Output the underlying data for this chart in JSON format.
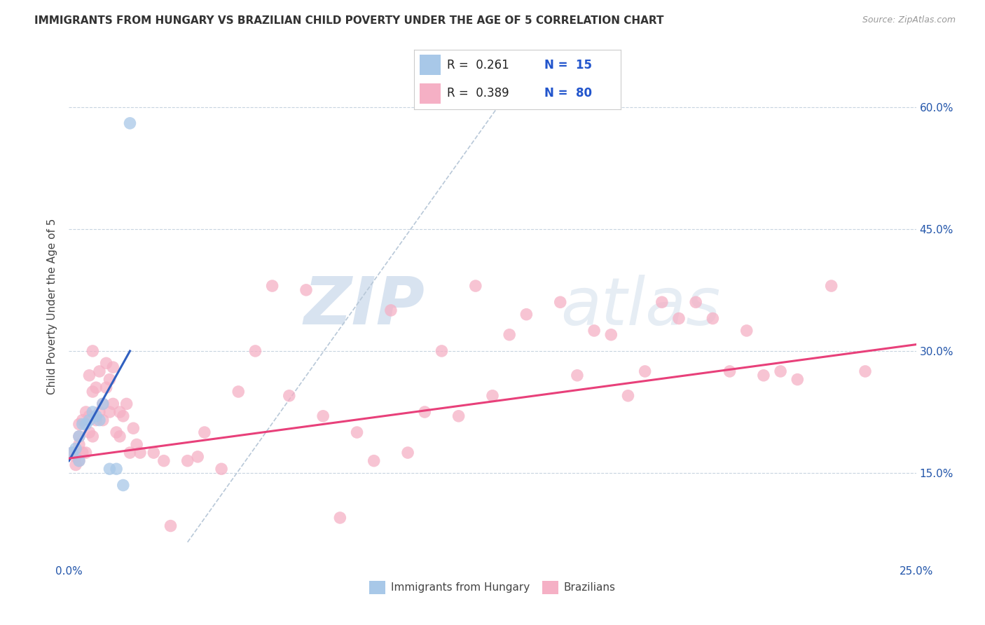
{
  "title": "IMMIGRANTS FROM HUNGARY VS BRAZILIAN CHILD POVERTY UNDER THE AGE OF 5 CORRELATION CHART",
  "source": "Source: ZipAtlas.com",
  "ylabel": "Child Poverty Under the Age of 5",
  "ytick_labels": [
    "15.0%",
    "30.0%",
    "45.0%",
    "60.0%"
  ],
  "ytick_values": [
    0.15,
    0.3,
    0.45,
    0.6
  ],
  "xlim": [
    0.0,
    0.25
  ],
  "ylim": [
    0.04,
    0.67
  ],
  "legend_label1": "Immigrants from Hungary",
  "legend_label2": "Brazilians",
  "color_hungary": "#a8c8e8",
  "color_brazil": "#f5b0c5",
  "color_hungary_line": "#3060c0",
  "color_brazil_line": "#e8407a",
  "color_dashed_line": "#b8c8d8",
  "watermark_color": "#ccd8ea",
  "hungary_x": [
    0.001,
    0.002,
    0.003,
    0.003,
    0.004,
    0.005,
    0.006,
    0.007,
    0.008,
    0.009,
    0.01,
    0.012,
    0.014,
    0.016,
    0.018
  ],
  "hungary_y": [
    0.175,
    0.18,
    0.165,
    0.195,
    0.21,
    0.21,
    0.215,
    0.225,
    0.22,
    0.215,
    0.235,
    0.155,
    0.155,
    0.135,
    0.58
  ],
  "brazil_x": [
    0.001,
    0.002,
    0.002,
    0.003,
    0.003,
    0.003,
    0.003,
    0.004,
    0.004,
    0.005,
    0.005,
    0.006,
    0.006,
    0.006,
    0.007,
    0.007,
    0.007,
    0.008,
    0.008,
    0.009,
    0.009,
    0.01,
    0.01,
    0.011,
    0.011,
    0.012,
    0.012,
    0.013,
    0.013,
    0.014,
    0.015,
    0.015,
    0.016,
    0.017,
    0.018,
    0.019,
    0.02,
    0.021,
    0.025,
    0.028,
    0.03,
    0.035,
    0.038,
    0.04,
    0.045,
    0.05,
    0.06,
    0.07,
    0.08,
    0.09,
    0.1,
    0.11,
    0.12,
    0.135,
    0.145,
    0.155,
    0.165,
    0.175,
    0.185,
    0.195,
    0.205,
    0.215,
    0.225,
    0.235,
    0.085,
    0.095,
    0.105,
    0.115,
    0.125,
    0.13,
    0.055,
    0.065,
    0.075,
    0.15,
    0.16,
    0.17,
    0.18,
    0.19,
    0.2,
    0.21
  ],
  "brazil_y": [
    0.175,
    0.17,
    0.16,
    0.185,
    0.195,
    0.21,
    0.165,
    0.175,
    0.215,
    0.175,
    0.225,
    0.2,
    0.22,
    0.27,
    0.195,
    0.25,
    0.3,
    0.215,
    0.255,
    0.225,
    0.275,
    0.215,
    0.235,
    0.255,
    0.285,
    0.225,
    0.265,
    0.235,
    0.28,
    0.2,
    0.195,
    0.225,
    0.22,
    0.235,
    0.175,
    0.205,
    0.185,
    0.175,
    0.175,
    0.165,
    0.085,
    0.165,
    0.17,
    0.2,
    0.155,
    0.25,
    0.38,
    0.375,
    0.095,
    0.165,
    0.175,
    0.3,
    0.38,
    0.345,
    0.36,
    0.325,
    0.245,
    0.36,
    0.36,
    0.275,
    0.27,
    0.265,
    0.38,
    0.275,
    0.2,
    0.35,
    0.225,
    0.22,
    0.245,
    0.32,
    0.3,
    0.245,
    0.22,
    0.27,
    0.32,
    0.275,
    0.34,
    0.34,
    0.325,
    0.275
  ],
  "hungary_line_x": [
    0.0,
    0.018
  ],
  "hungary_line_y": [
    0.165,
    0.3
  ],
  "brazil_line_x": [
    0.0,
    0.25
  ],
  "brazil_line_y": [
    0.168,
    0.308
  ],
  "dashed_line_x": [
    0.035,
    0.13
  ],
  "dashed_line_y": [
    0.065,
    0.62
  ]
}
